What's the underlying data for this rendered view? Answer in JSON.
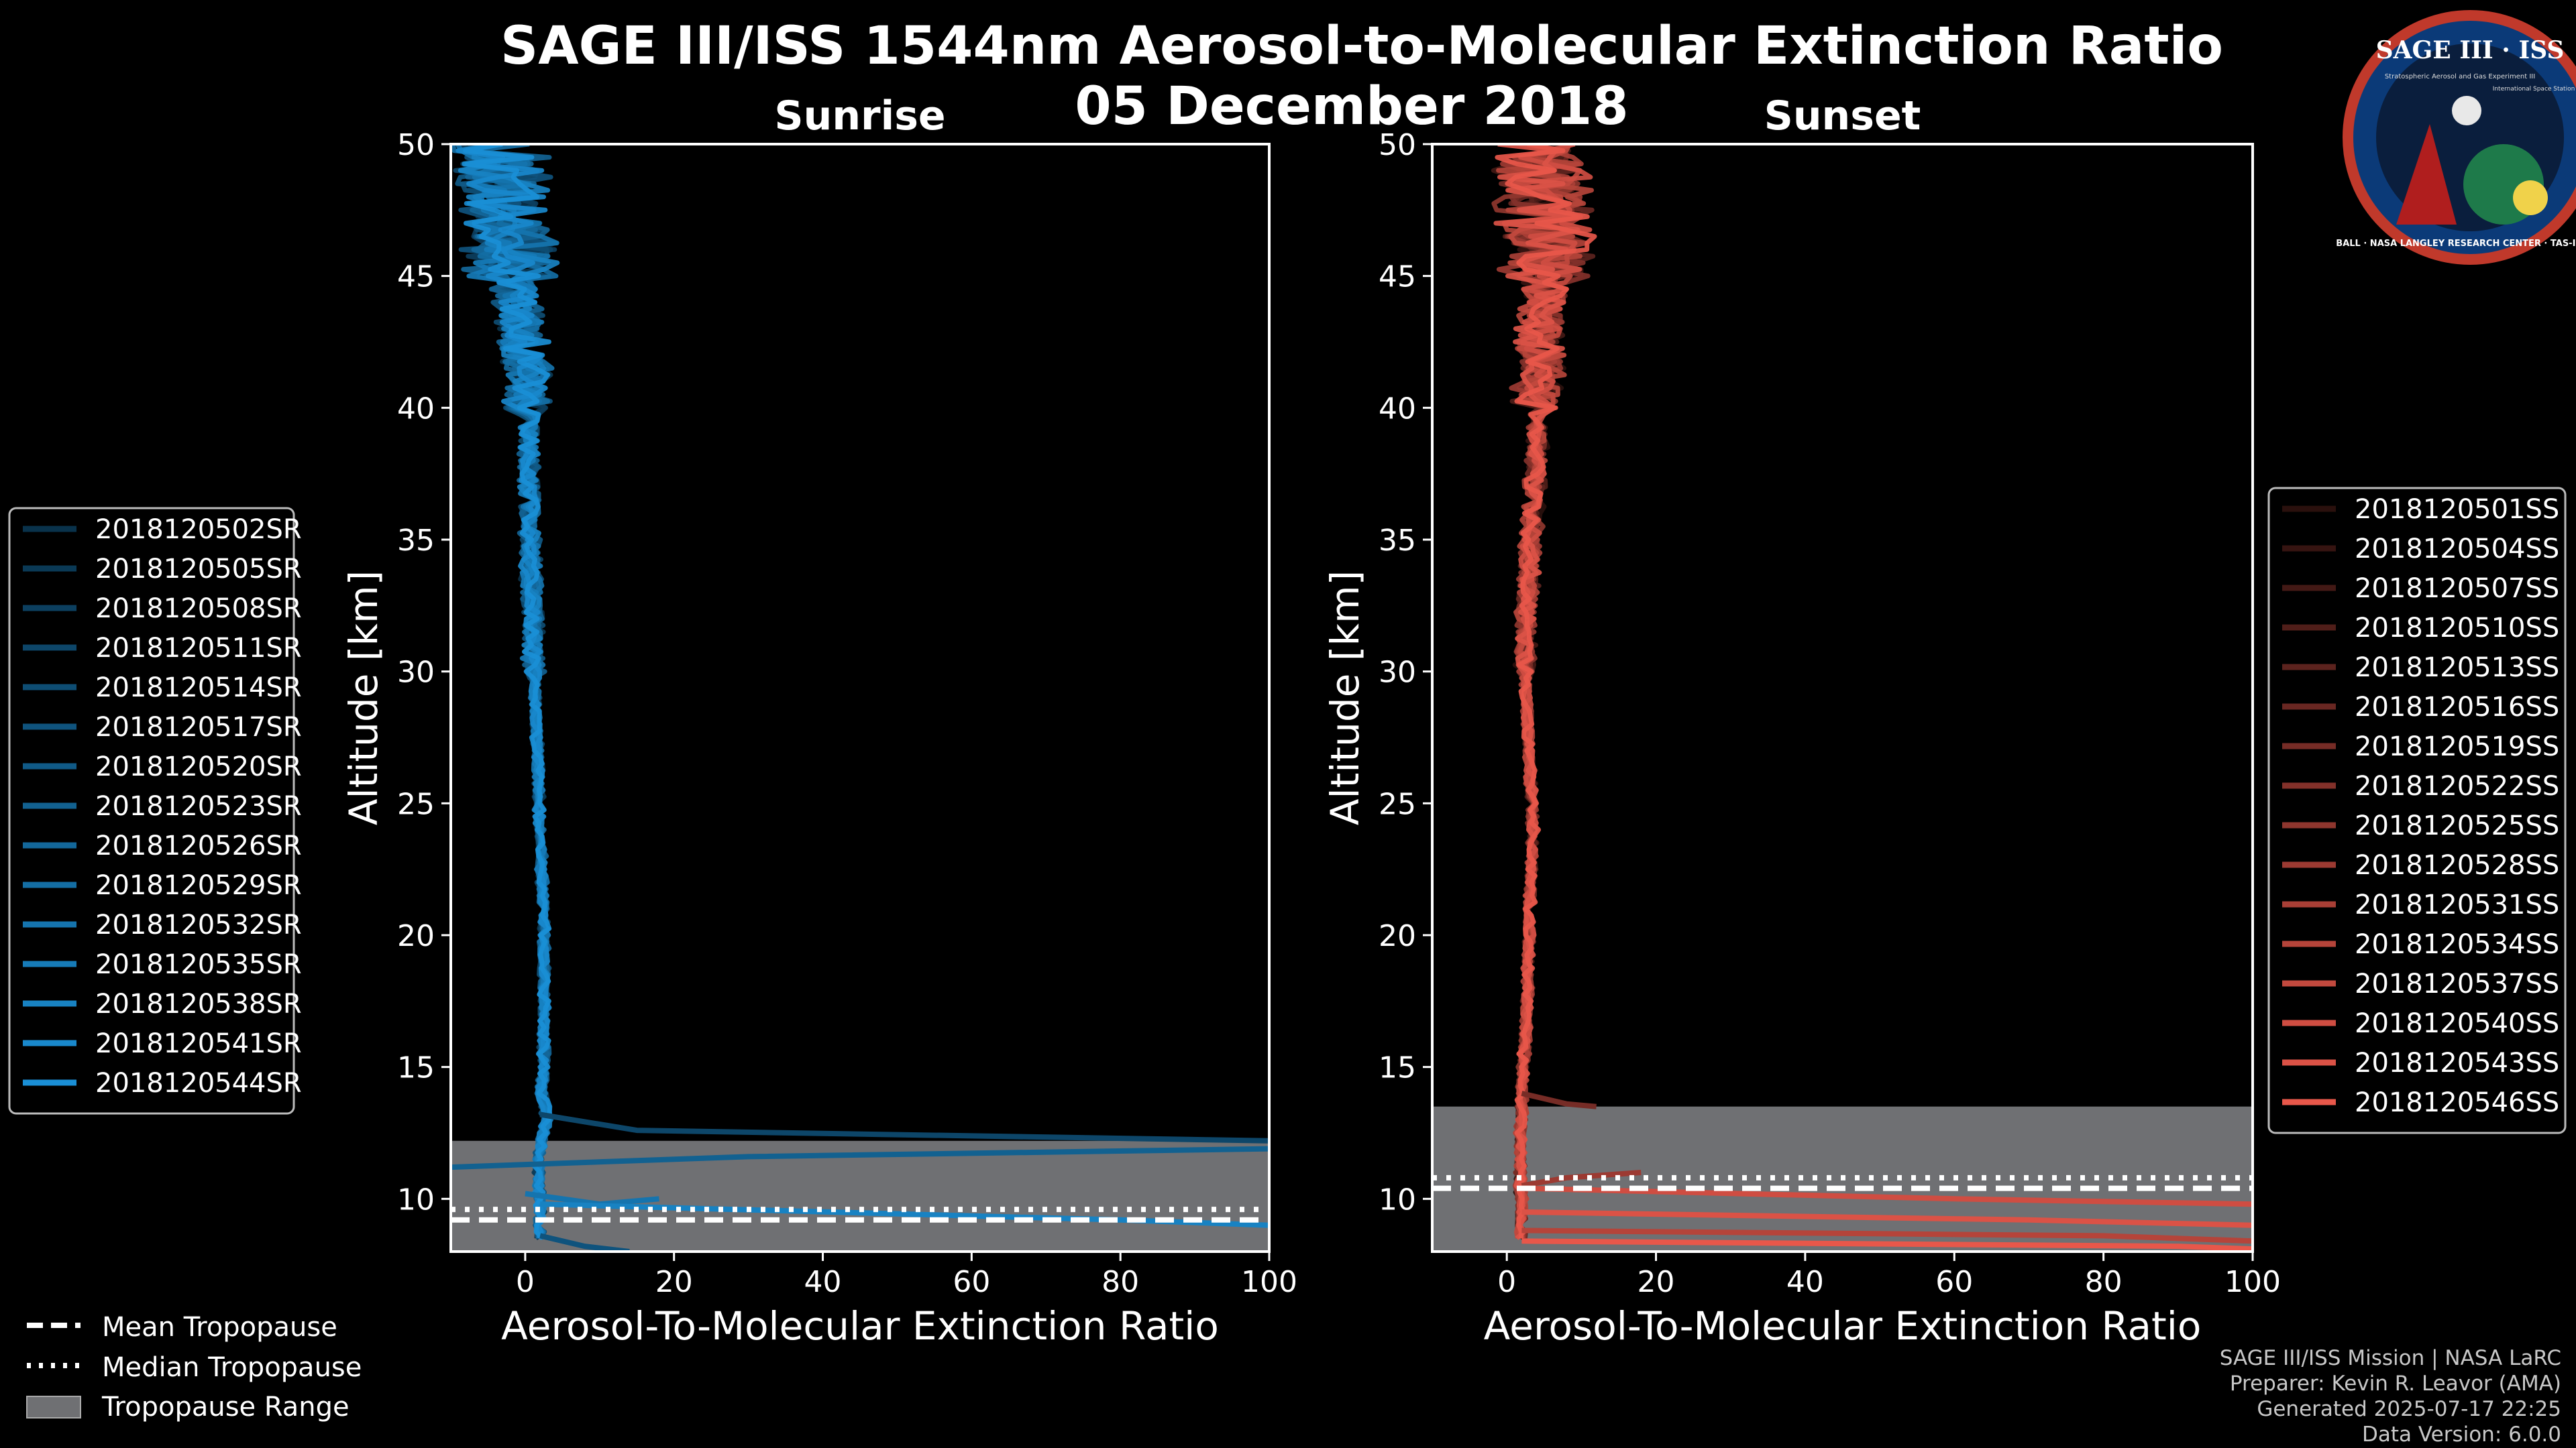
{
  "title": "SAGE III/ISS 1544nm Aerosol-to-Molecular Extinction Ratio",
  "date": "05 December 2018",
  "logo": {
    "name": "SAGE III · ISS",
    "subtitle": "Stratospheric Aerosol and Gas Experiment III",
    "station": "International Space Station",
    "ring": "BALL · NASA LANGLEY RESEARCH CENTER · TAS-I · ESA"
  },
  "footer": [
    "SAGE III/ISS Mission | NASA LaRC",
    "Preparer: Kevin R. Leavor (AMA)",
    "Generated 2025-07-17 22:25",
    "Data Version: 6.0.0"
  ],
  "tropo_legend": {
    "mean": "Mean Tropopause",
    "median": "Median Tropopause",
    "range": "Tropopause Range"
  },
  "colors": {
    "sunrise": "#1a8fd6",
    "sunset": "#e8574a",
    "tropo_range": "#6f7073"
  },
  "chart_data": [
    {
      "type": "line",
      "panel": "Sunrise",
      "title": "Sunrise",
      "xlabel": "Aerosol-To-Molecular Extinction Ratio",
      "ylabel": "Altitude [km]",
      "xlim": [
        -10,
        100
      ],
      "ylim": [
        8,
        50
      ],
      "xticks": [
        0,
        20,
        40,
        60,
        80,
        100
      ],
      "yticks": [
        10,
        15,
        20,
        25,
        30,
        35,
        40,
        45,
        50
      ],
      "legend_position": "left",
      "tropopause": {
        "range": [
          8,
          12.2
        ],
        "mean": 9.2,
        "median": 9.6
      },
      "series": [
        "2018120502SR",
        "2018120505SR",
        "2018120508SR",
        "2018120511SR",
        "2018120514SR",
        "2018120517SR",
        "2018120520SR",
        "2018120523SR",
        "2018120526SR",
        "2018120529SR",
        "2018120532SR",
        "2018120535SR",
        "2018120538SR",
        "2018120541SR",
        "2018120544SR"
      ],
      "profile_altitudes": [
        8.5,
        9,
        9.5,
        10,
        10.5,
        11,
        11.5,
        12,
        12.5,
        13,
        14,
        15,
        16,
        18,
        20,
        22,
        24,
        26,
        28,
        30,
        32,
        34,
        36,
        38,
        40,
        42,
        44,
        46,
        48,
        50
      ],
      "profile_mean": [
        2,
        2,
        2,
        2,
        1.8,
        1.8,
        1.8,
        2,
        2.5,
        3,
        2.2,
        2.5,
        2.5,
        2.5,
        2.5,
        2.3,
        2,
        1.8,
        1.5,
        1.2,
        1,
        0.8,
        0.5,
        0.5,
        0.5,
        0,
        -1,
        -2,
        -3,
        -4
      ],
      "excursions": [
        {
          "series": 3,
          "points": [
            [
              2,
              13.2
            ],
            [
              15,
              12.6
            ],
            [
              100,
              12.2
            ]
          ]
        },
        {
          "series": 7,
          "points": [
            [
              -10,
              11.2
            ],
            [
              30,
              11.6
            ],
            [
              100,
              11.9
            ]
          ]
        },
        {
          "series": 10,
          "points": [
            [
              0,
              10.2
            ],
            [
              10,
              9.8
            ],
            [
              18,
              10
            ]
          ]
        },
        {
          "series": 12,
          "points": [
            [
              2,
              9.8
            ],
            [
              80,
              9.2
            ],
            [
              100,
              9
            ]
          ]
        },
        {
          "series": 5,
          "points": [
            [
              2,
              8.6
            ],
            [
              8,
              8.2
            ],
            [
              14,
              8
            ]
          ]
        }
      ]
    },
    {
      "type": "line",
      "panel": "Sunset",
      "title": "Sunset",
      "xlabel": "Aerosol-To-Molecular Extinction Ratio",
      "ylabel": "Altitude [km]",
      "xlim": [
        -10,
        100
      ],
      "ylim": [
        8,
        50
      ],
      "xticks": [
        0,
        20,
        40,
        60,
        80,
        100
      ],
      "yticks": [
        10,
        15,
        20,
        25,
        30,
        35,
        40,
        45,
        50
      ],
      "legend_position": "right",
      "tropopause": {
        "range": [
          8,
          13.5
        ],
        "mean": 10.4,
        "median": 10.8
      },
      "series": [
        "2018120501SS",
        "2018120504SS",
        "2018120507SS",
        "2018120510SS",
        "2018120513SS",
        "2018120516SS",
        "2018120519SS",
        "2018120522SS",
        "2018120525SS",
        "2018120528SS",
        "2018120531SS",
        "2018120534SS",
        "2018120537SS",
        "2018120540SS",
        "2018120543SS",
        "2018120546SS"
      ],
      "profile_altitudes": [
        8.5,
        9,
        9.5,
        10,
        10.5,
        11,
        11.5,
        12,
        12.5,
        13,
        14,
        15,
        16,
        18,
        20,
        22,
        24,
        26,
        28,
        30,
        32,
        34,
        36,
        38,
        40,
        42,
        44,
        46,
        48,
        50
      ],
      "profile_mean": [
        2,
        2,
        2,
        2,
        1.8,
        1.8,
        1.8,
        1.8,
        1.8,
        2,
        2,
        2.2,
        2.5,
        2.8,
        3,
        3.2,
        3.5,
        3.2,
        2.8,
        2.5,
        2.5,
        3,
        3.5,
        4,
        4,
        4.5,
        5,
        5.5,
        5,
        4.5
      ],
      "excursions": [
        {
          "series": 6,
          "points": [
            [
              2,
              14
            ],
            [
              8,
              13.6
            ],
            [
              12,
              13.5
            ]
          ]
        },
        {
          "series": 9,
          "points": [
            [
              2,
              10.5
            ],
            [
              8,
              10.8
            ],
            [
              18,
              11
            ]
          ]
        },
        {
          "series": 13,
          "points": [
            [
              2,
              10.4
            ],
            [
              60,
              10
            ],
            [
              100,
              9.8
            ]
          ]
        },
        {
          "series": 14,
          "points": [
            [
              2,
              9.5
            ],
            [
              70,
              9.2
            ],
            [
              100,
              9
            ]
          ]
        },
        {
          "series": 11,
          "points": [
            [
              2,
              8.8
            ],
            [
              80,
              8.6
            ],
            [
              100,
              8.4
            ]
          ]
        },
        {
          "series": 15,
          "points": [
            [
              2,
              8.4
            ],
            [
              90,
              8.2
            ],
            [
              100,
              8.1
            ]
          ]
        }
      ]
    }
  ]
}
